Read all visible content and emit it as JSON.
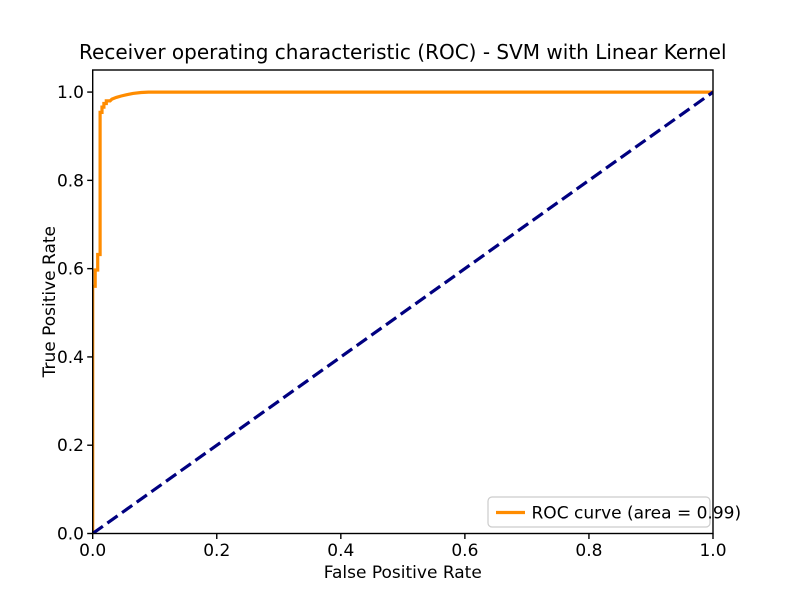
{
  "figure": {
    "background": "#ffffff"
  },
  "chart_data": {
    "type": "line",
    "title": "Receiver operating characteristic (ROC) - SVM with Linear Kernel",
    "xlabel": "False Positive Rate",
    "ylabel": "True Positive Rate",
    "xlim": [
      0.0,
      1.0
    ],
    "ylim": [
      0.0,
      1.05
    ],
    "xticks": [
      "0.0",
      "0.2",
      "0.4",
      "0.6",
      "0.8",
      "1.0"
    ],
    "yticks": [
      "0.0",
      "0.2",
      "0.4",
      "0.6",
      "0.8",
      "1.0"
    ],
    "grid": false,
    "series": [
      {
        "name": "ROC curve (area = 0.99)",
        "color": "#ff8c00",
        "style": "solid",
        "line_width": 3.2,
        "in_legend": true,
        "points": [
          [
            0.0,
            0.0
          ],
          [
            0.0,
            0.56
          ],
          [
            0.004,
            0.56
          ],
          [
            0.004,
            0.597
          ],
          [
            0.008,
            0.597
          ],
          [
            0.008,
            0.632
          ],
          [
            0.012,
            0.632
          ],
          [
            0.012,
            0.954
          ],
          [
            0.015,
            0.954
          ],
          [
            0.015,
            0.966
          ],
          [
            0.018,
            0.966
          ],
          [
            0.018,
            0.974
          ],
          [
            0.022,
            0.974
          ],
          [
            0.022,
            0.98
          ],
          [
            0.028,
            0.98
          ],
          [
            0.031,
            0.984
          ],
          [
            0.038,
            0.988
          ],
          [
            0.046,
            0.991
          ],
          [
            0.055,
            0.994
          ],
          [
            0.065,
            0.997
          ],
          [
            0.078,
            0.999
          ],
          [
            0.09,
            1.0
          ],
          [
            1.0,
            1.0
          ]
        ]
      },
      {
        "name": "chance diagonal",
        "color": "#000080",
        "style": "dashed",
        "line_width": 3.2,
        "in_legend": false,
        "points": [
          [
            0.0,
            0.0
          ],
          [
            1.0,
            1.0
          ]
        ]
      }
    ],
    "legend": {
      "position": "lower right",
      "entries": [
        {
          "label": "ROC curve (area = 0.99)",
          "color": "#ff8c00"
        }
      ]
    }
  }
}
